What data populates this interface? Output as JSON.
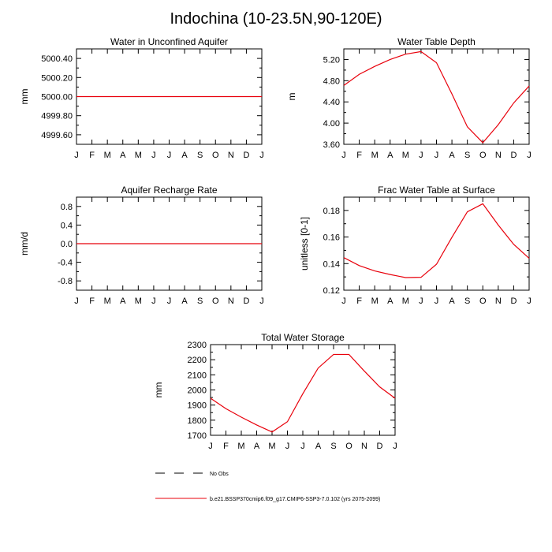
{
  "title": "Indochina (10-23.5N,90-120E)",
  "colors": {
    "model": "#e8000b",
    "axis": "#000000"
  },
  "legend": {
    "obs_label": "No Obs",
    "model_label": "b.e21.BSSP370cmip6.f09_g17.CMIP6-SSP3-7.0.102 (yrs 2075-2099)"
  },
  "chart_data": [
    {
      "type": "line",
      "title": "Water in Unconfined Aquifer",
      "ylabel": "mm",
      "x": [
        "J",
        "F",
        "M",
        "A",
        "M",
        "J",
        "J",
        "A",
        "S",
        "O",
        "N",
        "D",
        "J"
      ],
      "ylim": [
        4999.5,
        5000.5
      ],
      "yticks": [
        4999.6,
        4999.8,
        5000.0,
        5000.2,
        5000.4
      ],
      "ytick_labels": [
        "4999.60",
        "4999.80",
        "5000.00",
        "5000.20",
        "5000.40"
      ],
      "series": [
        {
          "values": [
            5000,
            5000,
            5000,
            5000,
            5000,
            5000,
            5000,
            5000,
            5000,
            5000,
            5000,
            5000,
            5000
          ]
        }
      ]
    },
    {
      "type": "line",
      "title": "Water Table Depth",
      "ylabel": "m",
      "x": [
        "J",
        "F",
        "M",
        "A",
        "M",
        "J",
        "J",
        "A",
        "S",
        "O",
        "N",
        "D",
        "J"
      ],
      "ylim": [
        3.6,
        5.4
      ],
      "yticks": [
        3.6,
        4.0,
        4.4,
        4.8,
        5.2
      ],
      "ytick_labels": [
        "3.60",
        "4.00",
        "4.40",
        "4.80",
        "5.20"
      ],
      "series": [
        {
          "values": [
            4.71,
            4.92,
            5.07,
            5.2,
            5.3,
            5.35,
            5.14,
            4.55,
            3.93,
            3.63,
            3.97,
            4.38,
            4.7
          ]
        }
      ]
    },
    {
      "type": "line",
      "title": "Aquifer Recharge Rate",
      "ylabel": "mm/d",
      "x": [
        "J",
        "F",
        "M",
        "A",
        "M",
        "J",
        "J",
        "A",
        "S",
        "O",
        "N",
        "D",
        "J"
      ],
      "ylim": [
        -1.0,
        1.0
      ],
      "yticks": [
        -0.8,
        -0.4,
        0.0,
        0.4,
        0.8
      ],
      "ytick_labels": [
        "-0.8",
        "-0.4",
        "0.0",
        "0.4",
        "0.8"
      ],
      "series": [
        {
          "values": [
            0,
            0,
            0,
            0,
            0,
            0,
            0,
            0,
            0,
            0,
            0,
            0,
            0
          ]
        }
      ]
    },
    {
      "type": "line",
      "title": "Frac Water Table at Surface",
      "ylabel": "unitless [0-1]",
      "x": [
        "J",
        "F",
        "M",
        "A",
        "M",
        "J",
        "J",
        "A",
        "S",
        "O",
        "N",
        "D",
        "J"
      ],
      "ylim": [
        0.12,
        0.19
      ],
      "yticks": [
        0.12,
        0.14,
        0.16,
        0.18
      ],
      "ytick_labels": [
        "0.12",
        "0.14",
        "0.16",
        "0.18"
      ],
      "series": [
        {
          "values": [
            0.1445,
            0.1385,
            0.1345,
            0.1318,
            0.1295,
            0.1297,
            0.1395,
            0.1598,
            0.179,
            0.185,
            0.169,
            0.1545,
            0.144
          ]
        }
      ]
    },
    {
      "type": "line",
      "title": "Total Water Storage",
      "ylabel": "mm",
      "x": [
        "J",
        "F",
        "M",
        "A",
        "M",
        "J",
        "J",
        "A",
        "S",
        "O",
        "N",
        "D",
        "J"
      ],
      "ylim": [
        1700,
        2300
      ],
      "yticks": [
        1700,
        1800,
        1900,
        2000,
        2100,
        2200,
        2300
      ],
      "ytick_labels": [
        "1700",
        "1800",
        "1900",
        "2000",
        "2100",
        "2200",
        "2300"
      ],
      "series": [
        {
          "values": [
            1945,
            1876,
            1820,
            1768,
            1722,
            1790,
            1975,
            2145,
            2235,
            2235,
            2125,
            2020,
            1945
          ]
        }
      ]
    }
  ]
}
